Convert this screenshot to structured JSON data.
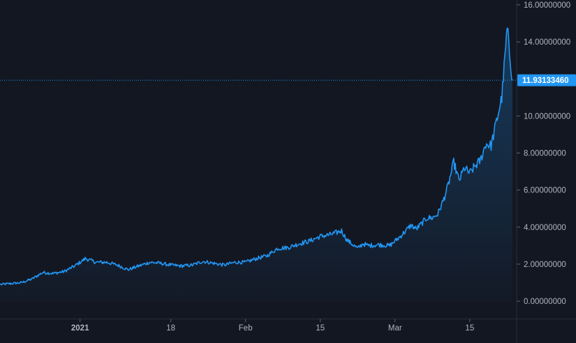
{
  "chart_data": {
    "type": "area",
    "title": "",
    "xlabel": "",
    "ylabel": "",
    "xlim": [
      "2020-12-17",
      "2021-03-23"
    ],
    "ylim": [
      -0.6,
      16.0
    ],
    "grid": false,
    "y_ticks": [
      {
        "value": 0,
        "label": "0.00000000"
      },
      {
        "value": 2,
        "label": "2.00000000"
      },
      {
        "value": 4,
        "label": "4.00000000"
      },
      {
        "value": 6,
        "label": "6.00000000"
      },
      {
        "value": 8,
        "label": "8.00000000"
      },
      {
        "value": 10,
        "label": "10.00000000"
      },
      {
        "value": 12,
        "label": "12.00000000"
      },
      {
        "value": 14,
        "label": "14.00000000"
      },
      {
        "value": 16,
        "label": "16.00000000"
      }
    ],
    "x_ticks": [
      {
        "date": "2021-01-01",
        "label": "2021",
        "bold": true
      },
      {
        "date": "2021-01-18",
        "label": "18",
        "bold": false
      },
      {
        "date": "2021-02-01",
        "label": "Feb",
        "bold": false
      },
      {
        "date": "2021-02-15",
        "label": "15",
        "bold": false
      },
      {
        "date": "2021-03-01",
        "label": "Mar",
        "bold": false
      },
      {
        "date": "2021-03-15",
        "label": "15",
        "bold": false
      }
    ],
    "last_price": {
      "value": 11.9313346,
      "label": "11.93133460"
    },
    "colors": {
      "line": "#2196f3",
      "price_label_bg": "#2196f3",
      "background": "#131722",
      "axis_text": "#b2b5be",
      "axis_line": "#2a2e39"
    },
    "series": [
      {
        "x": [
          "2020-12-17",
          "2020-12-19",
          "2020-12-21",
          "2020-12-23",
          "2020-12-25",
          "2020-12-27",
          "2020-12-29",
          "2020-12-31",
          "2021-01-02",
          "2021-01-04",
          "2021-01-06",
          "2021-01-08",
          "2021-01-10",
          "2021-01-12",
          "2021-01-14",
          "2021-01-16",
          "2021-01-18",
          "2021-01-20",
          "2021-01-22",
          "2021-01-24",
          "2021-01-26",
          "2021-01-28",
          "2021-01-30",
          "2021-02-01",
          "2021-02-03",
          "2021-02-05",
          "2021-02-07",
          "2021-02-09",
          "2021-02-11",
          "2021-02-13",
          "2021-02-15",
          "2021-02-17",
          "2021-02-19",
          "2021-02-20",
          "2021-02-22",
          "2021-02-23",
          "2021-02-24",
          "2021-02-26",
          "2021-02-28",
          "2021-03-02",
          "2021-03-04",
          "2021-03-05",
          "2021-03-06",
          "2021-03-07",
          "2021-03-08",
          "2021-03-09",
          "2021-03-10",
          "2021-03-11",
          "2021-03-12",
          "2021-03-13",
          "2021-03-14",
          "2021-03-15",
          "2021-03-16",
          "2021-03-17",
          "2021-03-18",
          "2021-03-19",
          "2021-03-20",
          "2021-03-21",
          "2021-03-22",
          "2021-03-23"
        ],
        "y": [
          0.9,
          0.95,
          1.0,
          1.2,
          1.55,
          1.5,
          1.6,
          1.9,
          2.3,
          2.1,
          2.1,
          1.95,
          1.7,
          1.9,
          2.1,
          2.05,
          1.95,
          1.9,
          1.95,
          2.15,
          2.05,
          1.95,
          2.1,
          2.1,
          2.3,
          2.45,
          2.85,
          2.9,
          3.1,
          3.25,
          3.5,
          3.6,
          3.8,
          3.3,
          2.85,
          3.1,
          3.0,
          3.05,
          3.0,
          3.5,
          4.1,
          3.9,
          4.2,
          4.5,
          4.5,
          4.7,
          5.4,
          6.3,
          7.5,
          6.5,
          7.2,
          6.9,
          7.3,
          7.6,
          8.5,
          8.4,
          9.7,
          11.0,
          14.7,
          11.93
        ]
      }
    ]
  }
}
